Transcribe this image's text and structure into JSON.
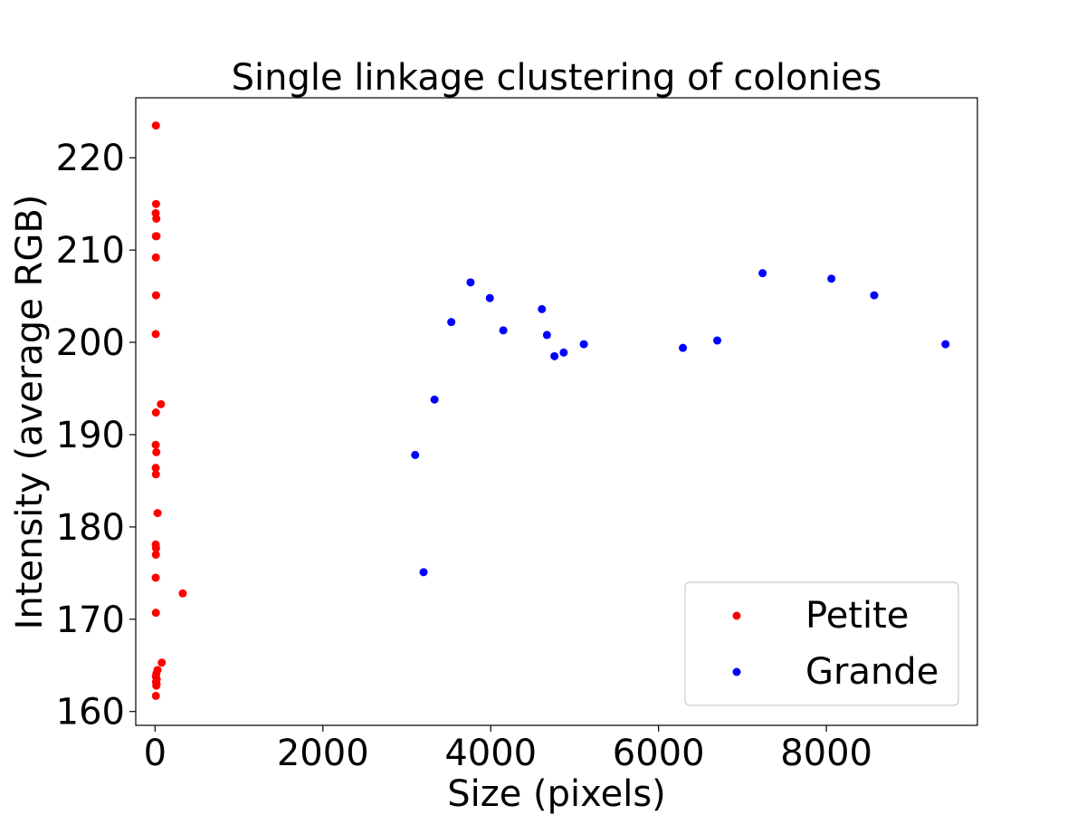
{
  "chart_data": {
    "type": "scatter",
    "title": "Single linkage clustering of colonies",
    "xlabel": "Size (pixels)",
    "ylabel": "Intensity (average RGB)",
    "xlim": [
      -230,
      9800
    ],
    "ylim": [
      158.5,
      226.5
    ],
    "xticks": [
      0,
      2000,
      4000,
      6000,
      8000
    ],
    "yticks": [
      160,
      170,
      180,
      190,
      200,
      210,
      220
    ],
    "grid": false,
    "legend_position": "lower-right",
    "series": [
      {
        "name": "Petite",
        "color": "#ff0000",
        "points": [
          [
            10,
            223.5
          ],
          [
            12,
            215.0
          ],
          [
            8,
            214.0
          ],
          [
            15,
            213.4
          ],
          [
            10,
            211.5
          ],
          [
            18,
            211.5
          ],
          [
            10,
            209.2
          ],
          [
            12,
            205.1
          ],
          [
            8,
            200.9
          ],
          [
            70,
            193.3
          ],
          [
            10,
            192.4
          ],
          [
            8,
            188.9
          ],
          [
            15,
            188.1
          ],
          [
            8,
            186.4
          ],
          [
            10,
            185.7
          ],
          [
            30,
            181.5
          ],
          [
            8,
            178.1
          ],
          [
            12,
            177.7
          ],
          [
            10,
            177.0
          ],
          [
            8,
            174.5
          ],
          [
            330,
            172.8
          ],
          [
            10,
            170.7
          ],
          [
            80,
            165.3
          ],
          [
            30,
            164.5
          ],
          [
            15,
            164.1
          ],
          [
            10,
            163.8
          ],
          [
            20,
            163.5
          ],
          [
            12,
            163.2
          ],
          [
            18,
            163.0
          ],
          [
            15,
            162.8
          ],
          [
            10,
            161.7
          ]
        ]
      },
      {
        "name": "Grande",
        "color": "#0000ff",
        "points": [
          [
            3100,
            187.8
          ],
          [
            3200,
            175.1
          ],
          [
            3330,
            193.8
          ],
          [
            3530,
            202.2
          ],
          [
            3760,
            206.5
          ],
          [
            3990,
            204.8
          ],
          [
            4150,
            201.3
          ],
          [
            4610,
            203.6
          ],
          [
            4670,
            200.8
          ],
          [
            4760,
            198.5
          ],
          [
            4870,
            198.9
          ],
          [
            5110,
            199.8
          ],
          [
            6290,
            199.4
          ],
          [
            6700,
            200.2
          ],
          [
            7240,
            207.5
          ],
          [
            8060,
            206.9
          ],
          [
            8570,
            205.1
          ],
          [
            9420,
            199.8
          ]
        ]
      }
    ]
  }
}
